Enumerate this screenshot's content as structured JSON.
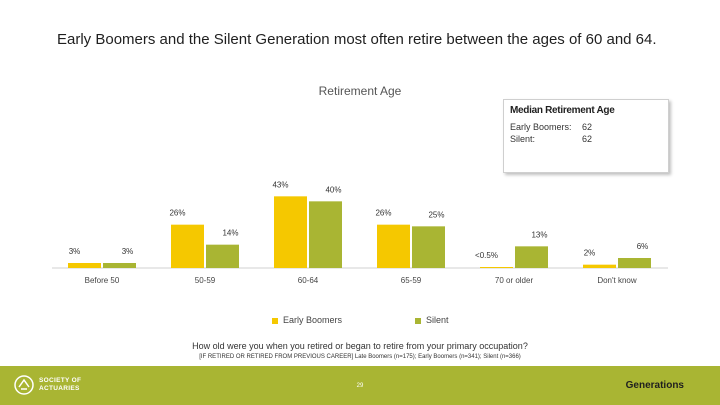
{
  "headline": "Early Boomers and the Silent Generation most often retire between the ages of 60 and 64.",
  "median_box": {
    "title": "Median Retirement Age",
    "rows": [
      {
        "label": "Early Boomers:",
        "value": "62"
      },
      {
        "label": "Silent:",
        "value": "62"
      }
    ]
  },
  "chart_data": {
    "type": "bar",
    "title": "Retirement Age",
    "categories": [
      "Before 50",
      "50-59",
      "60-64",
      "65-59",
      "70 or older",
      "Don't know"
    ],
    "series": [
      {
        "name": "Early Boomers",
        "color": "#f5c800",
        "values": [
          3,
          26,
          43,
          26,
          0.4,
          2
        ],
        "labels": [
          "3%",
          "26%",
          "43%",
          "26%",
          "<0.5%",
          "2%"
        ]
      },
      {
        "name": "Silent",
        "color": "#a9b533",
        "values": [
          3,
          14,
          40,
          25,
          13,
          6
        ],
        "labels": [
          "3%",
          "14%",
          "40%",
          "25%",
          "13%",
          "6%"
        ]
      }
    ],
    "xlabel": "",
    "ylabel": "",
    "ylim": [
      0,
      45
    ],
    "grid": false,
    "legend_position": "bottom"
  },
  "question": "How old were you when you retired or began to retire from your primary occupation?",
  "note": "[IF RETIRED OR RETIRED FROM PREVIOUS CAREER] Late Boomers (n=175); Early Boomers (n=341); Silent (n=366)",
  "footer": {
    "logo_line1": "SOCIETY OF",
    "logo_line2": "ACTUARIES",
    "page_number": "29",
    "brand": "Generations"
  }
}
